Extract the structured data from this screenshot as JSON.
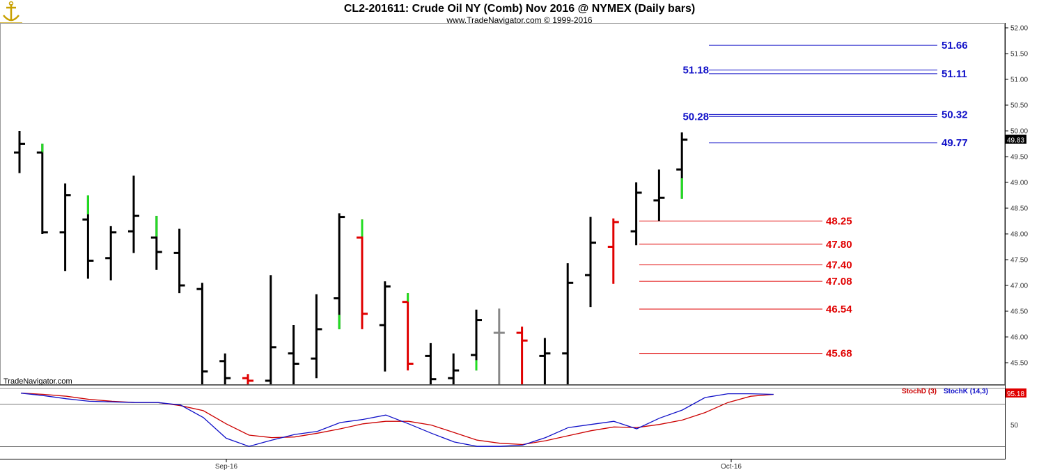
{
  "header": {
    "title": "CL2-201611:  Crude Oil NY (Comb) Nov 2016 @ NYMEX  (Daily bars)",
    "subtitle": "www.TradeNavigator.com © 1999-2016",
    "watermark": "TradeNavigator.com",
    "logo_icon": "anchor-logo-icon"
  },
  "colors": {
    "up_bar": "#000000",
    "down_bar": "#e00000",
    "neutral_bar": "#888888",
    "tail": "#22dd22",
    "resistance": "#1010c8",
    "support": "#e00000",
    "stoch_d": "#cc0000",
    "stoch_k": "#1010c8"
  },
  "chart_data": [
    {
      "type": "ohlc",
      "title": "CL2-201611:  Crude Oil NY (Comb) Nov 2016 @ NYMEX  (Daily bars)",
      "ylim": [
        45.1,
        52.0
      ],
      "y_ticks": [
        "52.00",
        "51.50",
        "51.00",
        "50.50",
        "50.00",
        "49.50",
        "49.00",
        "48.50",
        "48.00",
        "47.50",
        "47.00",
        "46.50",
        "46.00",
        "45.50"
      ],
      "x_ticks": [
        "Sep-16",
        "Oct-16"
      ],
      "last_price": "49.83",
      "bars": [
        {
          "o": 49.58,
          "h": 50.0,
          "l": 49.18,
          "c": 49.75,
          "color": "up"
        },
        {
          "o": 49.58,
          "h": 49.75,
          "l": 48.0,
          "c": 48.03,
          "color": "up",
          "tail": [
            49.58,
            49.75
          ]
        },
        {
          "o": 48.03,
          "h": 48.98,
          "l": 47.28,
          "c": 48.75,
          "color": "up"
        },
        {
          "o": 48.28,
          "h": 48.75,
          "l": 47.13,
          "c": 47.48,
          "color": "up",
          "tail": [
            48.38,
            48.75
          ]
        },
        {
          "o": 47.53,
          "h": 48.15,
          "l": 47.1,
          "c": 48.03,
          "color": "up"
        },
        {
          "o": 48.05,
          "h": 49.13,
          "l": 47.63,
          "c": 48.35,
          "color": "up"
        },
        {
          "o": 47.93,
          "h": 48.35,
          "l": 47.3,
          "c": 47.65,
          "color": "up",
          "tail": [
            47.95,
            48.35
          ]
        },
        {
          "o": 47.63,
          "h": 48.1,
          "l": 46.85,
          "c": 47.0,
          "color": "up"
        },
        {
          "o": 46.93,
          "h": 47.05,
          "l": 45.05,
          "c": 45.33,
          "color": "up"
        },
        {
          "o": 45.53,
          "h": 45.68,
          "l": 45.05,
          "c": 45.2,
          "color": "up"
        },
        {
          "o": 45.2,
          "h": 45.28,
          "l": 45.05,
          "c": 45.15,
          "color": "down"
        },
        {
          "o": 45.15,
          "h": 47.2,
          "l": 45.05,
          "c": 45.8,
          "color": "up"
        },
        {
          "o": 45.68,
          "h": 46.23,
          "l": 45.05,
          "c": 45.48,
          "color": "up"
        },
        {
          "o": 45.58,
          "h": 46.83,
          "l": 45.2,
          "c": 46.15,
          "color": "up"
        },
        {
          "o": 46.75,
          "h": 48.4,
          "l": 46.15,
          "c": 48.33,
          "color": "up",
          "tail": [
            46.15,
            46.43
          ]
        },
        {
          "o": 47.93,
          "h": 48.28,
          "l": 46.15,
          "c": 46.45,
          "color": "down",
          "tail": [
            47.95,
            48.28
          ]
        },
        {
          "o": 46.23,
          "h": 47.08,
          "l": 45.33,
          "c": 46.98,
          "color": "up"
        },
        {
          "o": 46.68,
          "h": 46.85,
          "l": 45.35,
          "c": 45.48,
          "color": "down",
          "tail": [
            46.68,
            46.85
          ]
        },
        {
          "o": 45.63,
          "h": 45.88,
          "l": 45.05,
          "c": 45.18,
          "color": "up"
        },
        {
          "o": 45.2,
          "h": 45.68,
          "l": 45.05,
          "c": 45.35,
          "color": "up"
        },
        {
          "o": 45.65,
          "h": 46.53,
          "l": 45.35,
          "c": 46.33,
          "color": "up",
          "tail": [
            45.35,
            45.55
          ]
        },
        {
          "o": 46.08,
          "h": 46.55,
          "l": 45.05,
          "c": 46.08,
          "color": "neutral"
        },
        {
          "o": 46.08,
          "h": 46.2,
          "l": 45.05,
          "c": 45.93,
          "color": "down"
        },
        {
          "o": 45.63,
          "h": 45.98,
          "l": 45.05,
          "c": 45.68,
          "color": "up"
        },
        {
          "o": 45.68,
          "h": 47.43,
          "l": 45.05,
          "c": 47.05,
          "color": "up"
        },
        {
          "o": 47.2,
          "h": 48.33,
          "l": 46.58,
          "c": 47.83,
          "color": "up"
        },
        {
          "o": 47.75,
          "h": 48.3,
          "l": 47.03,
          "c": 48.23,
          "color": "down"
        },
        {
          "o": 48.05,
          "h": 49.0,
          "l": 47.78,
          "c": 48.8,
          "color": "up"
        },
        {
          "o": 48.65,
          "h": 49.25,
          "l": 48.25,
          "c": 48.7,
          "color": "up"
        },
        {
          "o": 49.25,
          "h": 49.97,
          "l": 48.68,
          "c": 49.83,
          "color": "up",
          "tail": [
            48.68,
            49.08
          ]
        }
      ],
      "resistance_levels": [
        {
          "value": 51.66,
          "right_label": "51.66",
          "left_label": ""
        },
        {
          "value": 51.18,
          "right_label": "",
          "left_label": "51.18"
        },
        {
          "value": 51.11,
          "right_label": "51.11",
          "left_label": ""
        },
        {
          "value": 50.28,
          "right_label": "",
          "left_label": "50.28"
        },
        {
          "value": 50.32,
          "right_label": "50.32",
          "left_label": ""
        },
        {
          "value": 49.77,
          "right_label": "49.77",
          "left_label": ""
        }
      ],
      "support_levels": [
        {
          "value": 48.25,
          "label": "48.25"
        },
        {
          "value": 47.8,
          "label": "47.80"
        },
        {
          "value": 47.4,
          "label": "47.40"
        },
        {
          "value": 47.08,
          "label": "47.08"
        },
        {
          "value": 46.54,
          "label": "46.54"
        },
        {
          "value": 45.68,
          "label": "45.68"
        }
      ]
    },
    {
      "type": "line",
      "ylim": [
        0,
        100
      ],
      "y_ticks": [
        "50"
      ],
      "legend": [
        "StochD (3)",
        "StochK (14,3)"
      ],
      "last_value": "95.18",
      "series": [
        {
          "name": "StochD (3)",
          "values": [
            97,
            95,
            92,
            87,
            84,
            82,
            82,
            77,
            69,
            48,
            30,
            26,
            27,
            33,
            40,
            48,
            52,
            52,
            46,
            34,
            22,
            17,
            15,
            21,
            29,
            37,
            43,
            42,
            47,
            54,
            66,
            82,
            92,
            95
          ]
        },
        {
          "name": "StochK (14,3)",
          "values": [
            97,
            93,
            88,
            84,
            83,
            82,
            82,
            78,
            58,
            25,
            12,
            22,
            31,
            36,
            50,
            55,
            62,
            48,
            33,
            19,
            12,
            12,
            14,
            26,
            42,
            47,
            52,
            40,
            57,
            70,
            90,
            96,
            96,
            95
          ]
        }
      ]
    }
  ]
}
